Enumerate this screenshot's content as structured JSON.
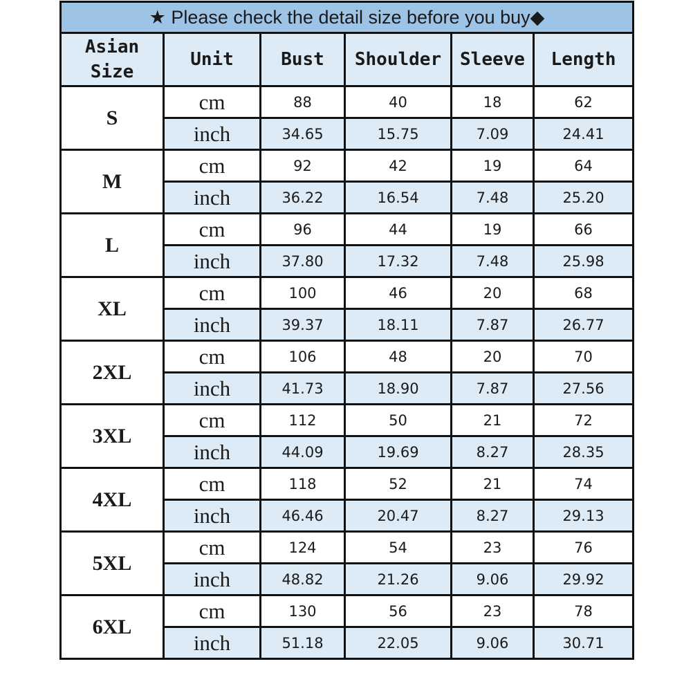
{
  "title": "★ Please check the detail size before you buy◆",
  "headers": [
    "Asian Size",
    "Unit",
    "Bust",
    "Shoulder",
    "Sleeve",
    "Length"
  ],
  "sizes": [
    {
      "size": "S",
      "cm": [
        "88",
        "40",
        "18",
        "62"
      ],
      "inch": [
        "34.65",
        "15.75",
        "7.09",
        "24.41"
      ]
    },
    {
      "size": "M",
      "cm": [
        "92",
        "42",
        "19",
        "64"
      ],
      "inch": [
        "36.22",
        "16.54",
        "7.48",
        "25.20"
      ]
    },
    {
      "size": "L",
      "cm": [
        "96",
        "44",
        "19",
        "66"
      ],
      "inch": [
        "37.80",
        "17.32",
        "7.48",
        "25.98"
      ]
    },
    {
      "size": "XL",
      "cm": [
        "100",
        "46",
        "20",
        "68"
      ],
      "inch": [
        "39.37",
        "18.11",
        "7.87",
        "26.77"
      ]
    },
    {
      "size": "2XL",
      "cm": [
        "106",
        "48",
        "20",
        "70"
      ],
      "inch": [
        "41.73",
        "18.90",
        "7.87",
        "27.56"
      ]
    },
    {
      "size": "3XL",
      "cm": [
        "112",
        "50",
        "21",
        "72"
      ],
      "inch": [
        "44.09",
        "19.69",
        "8.27",
        "28.35"
      ]
    },
    {
      "size": "4XL",
      "cm": [
        "118",
        "52",
        "21",
        "74"
      ],
      "inch": [
        "46.46",
        "20.47",
        "8.27",
        "29.13"
      ]
    },
    {
      "size": "5XL",
      "cm": [
        "124",
        "54",
        "23",
        "76"
      ],
      "inch": [
        "48.82",
        "21.26",
        "9.06",
        "29.92"
      ]
    },
    {
      "size": "6XL",
      "cm": [
        "130",
        "56",
        "23",
        "78"
      ],
      "inch": [
        "51.18",
        "22.05",
        "9.06",
        "30.71"
      ]
    }
  ],
  "units": {
    "cm": "cm",
    "inch": "inch"
  },
  "colors": {
    "title_bg": "#9dc3e6",
    "header_bg": "#ddebf7",
    "inch_row_bg": "#ddebf7"
  }
}
